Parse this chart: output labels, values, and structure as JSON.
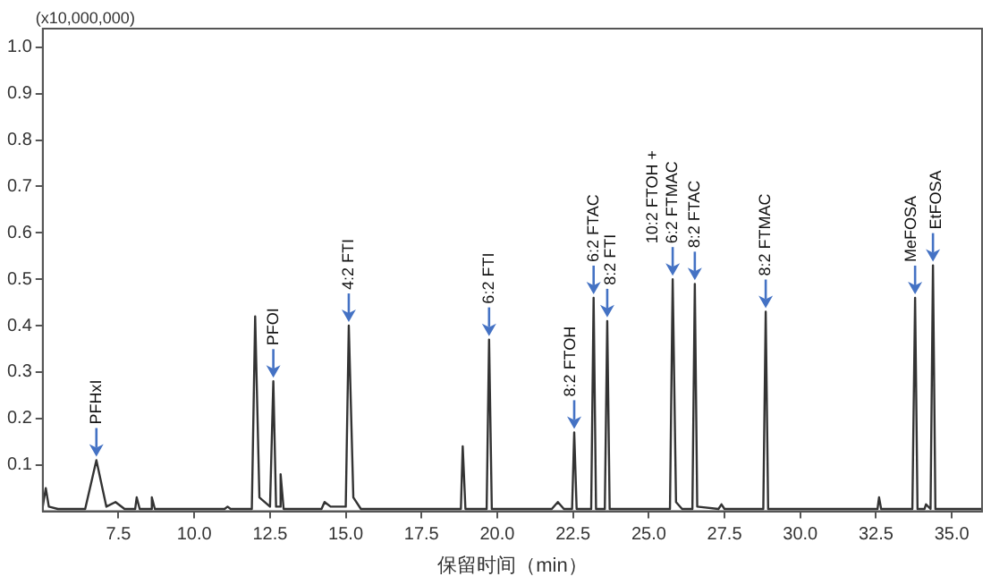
{
  "chart_data": {
    "type": "line",
    "xlabel": "保留时间（min）",
    "ylabel": "(x10,000,000)",
    "x": [
      5.0,
      5.1,
      5.2,
      5.5,
      6.4,
      6.77,
      7.1,
      7.4,
      7.7,
      8.05,
      8.1,
      8.2,
      8.55,
      8.6,
      8.7,
      11.0,
      11.1,
      11.2,
      11.9,
      12.01,
      12.15,
      12.5,
      12.61,
      12.7,
      12.8,
      12.85,
      12.95,
      14.2,
      14.3,
      14.5,
      15.0,
      15.1,
      15.25,
      15.5,
      18.8,
      18.86,
      18.95,
      19.65,
      19.73,
      19.82,
      21.8,
      22.0,
      22.2,
      22.47,
      22.54,
      22.62,
      23.1,
      23.18,
      23.26,
      23.55,
      23.63,
      23.71,
      25.7,
      25.79,
      25.9,
      26.1,
      26.44,
      26.52,
      26.6,
      27.3,
      27.4,
      27.5,
      28.78,
      28.86,
      28.94,
      32.55,
      32.6,
      32.67,
      33.7,
      33.79,
      33.87,
      34.1,
      34.15,
      34.3,
      34.38,
      34.46,
      36.0
    ],
    "series": [
      {
        "color": "#333333",
        "values": [
          0.01,
          0.05,
          0.01,
          0.005,
          0.005,
          0.11,
          0.01,
          0.02,
          0.005,
          0.005,
          0.03,
          0.005,
          0.005,
          0.03,
          0.005,
          0.005,
          0.01,
          0.005,
          0.005,
          0.42,
          0.03,
          0.01,
          0.28,
          0.01,
          0.01,
          0.08,
          0.005,
          0.005,
          0.02,
          0.01,
          0.01,
          0.4,
          0.03,
          0.005,
          0.005,
          0.14,
          0.005,
          0.005,
          0.37,
          0.005,
          0.005,
          0.02,
          0.005,
          0.005,
          0.17,
          0.005,
          0.005,
          0.46,
          0.005,
          0.005,
          0.41,
          0.005,
          0.005,
          0.5,
          0.02,
          0.005,
          0.005,
          0.49,
          0.01,
          0.005,
          0.015,
          0.005,
          0.005,
          0.43,
          0.005,
          0.005,
          0.03,
          0.005,
          0.005,
          0.46,
          0.005,
          0.005,
          0.015,
          0.005,
          0.53,
          0.005,
          0.005
        ]
      }
    ],
    "xlim": [
      5.0,
      36.0
    ],
    "xticks": [
      {
        "value": 7.5,
        "label": "7.5"
      },
      {
        "value": 10,
        "label": "10.0"
      },
      {
        "value": 12.5,
        "label": "12.5"
      },
      {
        "value": 15,
        "label": "15.0"
      },
      {
        "value": 17.5,
        "label": "17.5"
      },
      {
        "value": 20,
        "label": "20.0"
      },
      {
        "value": 22.5,
        "label": "22.5"
      },
      {
        "value": 25,
        "label": "25.0"
      },
      {
        "value": 27.5,
        "label": "27.5"
      },
      {
        "value": 30,
        "label": "30.0"
      },
      {
        "value": 32.5,
        "label": "32.5"
      },
      {
        "value": 35,
        "label": "35.0"
      }
    ],
    "ylim": [
      0,
      1.04
    ],
    "yticks": [
      0.1,
      0.2,
      0.3,
      0.4,
      0.5,
      0.6,
      0.7,
      0.8,
      0.9,
      {
        "value": 1,
        "label": "1.0"
      }
    ],
    "grid": false,
    "legend": false,
    "marker": "none",
    "line_style": "solid",
    "annotations": [
      {
        "text": "PFHxI",
        "x": 6.77,
        "y": 0.11
      },
      {
        "text": "PFOI",
        "x": 12.61,
        "y": 0.28
      },
      {
        "text": "4:2 FTI",
        "x": 15.1,
        "y": 0.4
      },
      {
        "text": "6:2 FTI",
        "x": 19.73,
        "y": 0.37
      },
      {
        "text": "8:2 FTOH",
        "x": 22.54,
        "y": 0.17
      },
      {
        "text": "6:2 FTAC",
        "x": 23.18,
        "y": 0.46
      },
      {
        "text": "8:2 FTI",
        "x": 23.63,
        "y": 0.41
      },
      {
        "text": "10:2 FTOH +\n6:2 FTMAC",
        "x": 25.79,
        "y": 0.5
      },
      {
        "text": "8:2 FTAC",
        "x": 26.52,
        "y": 0.49
      },
      {
        "text": "8:2 FTMAC",
        "x": 28.86,
        "y": 0.43
      },
      {
        "text": "MeFOSA",
        "x": 33.79,
        "y": 0.46
      },
      {
        "text": "EtFOSA",
        "x": 34.38,
        "y": 0.53
      }
    ]
  }
}
